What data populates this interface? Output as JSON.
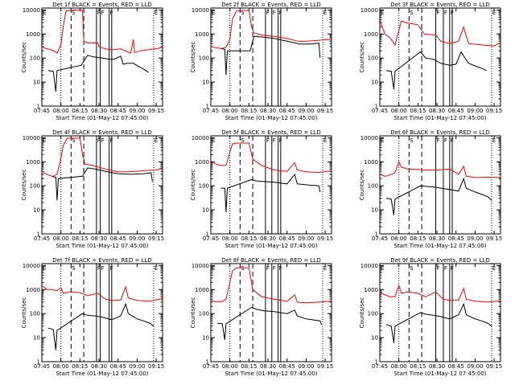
{
  "chart_data": {
    "type": "line",
    "panel_count": 9,
    "x_label": "Start Time (01-May-12 07:45:00)",
    "y_label": "Counts/sec",
    "x_ticks": [
      "07:45",
      "08:00",
      "08:15",
      "08:30",
      "08:45",
      "09:00",
      "09:15"
    ],
    "x_range_min": [
      0,
      95
    ],
    "y_ticks": [
      "1",
      "10",
      "100",
      "1000",
      "10000"
    ],
    "y_range": [
      1,
      12000
    ],
    "y_scale": "log",
    "colors": {
      "events": "#000000",
      "lld": "#ff0000"
    },
    "flag_glyph": "F",
    "marker_labels": {
      "S": "S",
      "E": "E"
    },
    "panels": [
      {
        "title": "Det 1f BLACK = Events, RED = LLD",
        "flag_count": 3,
        "red": [
          [
            0,
            300
          ],
          [
            2,
            260
          ],
          [
            6,
            230
          ],
          [
            10,
            190
          ],
          [
            12,
            160
          ],
          [
            15,
            350
          ],
          [
            17,
            2200
          ],
          [
            19,
            9000
          ],
          [
            24,
            9800
          ],
          [
            32,
            9800
          ],
          [
            33,
            500
          ],
          [
            36,
            420
          ],
          [
            44,
            420
          ],
          [
            45,
            300
          ],
          [
            48,
            260
          ],
          [
            52,
            230
          ],
          [
            57,
            220
          ],
          [
            62,
            240
          ],
          [
            70,
            160
          ],
          [
            72,
            600
          ],
          [
            73,
            170
          ],
          [
            78,
            200
          ],
          [
            86,
            230
          ],
          [
            95,
            270
          ]
        ],
        "black": [
          [
            5,
            30
          ],
          [
            9,
            28
          ],
          [
            11,
            4
          ],
          [
            12,
            30
          ],
          [
            31,
            50
          ],
          [
            36,
            130
          ],
          [
            41,
            110
          ],
          [
            48,
            100
          ],
          [
            53,
            90
          ],
          [
            57,
            90
          ],
          [
            62,
            120
          ],
          [
            64,
            55
          ],
          [
            67,
            60
          ],
          [
            72,
            60
          ],
          [
            76,
            45
          ],
          [
            80,
            35
          ],
          [
            84,
            25
          ]
        ]
      },
      {
        "title": "Det 2f BLACK = Events, RED = LLD",
        "flag_count": 3,
        "red": [
          [
            0,
            300
          ],
          [
            5,
            260
          ],
          [
            9,
            250
          ],
          [
            12,
            280
          ],
          [
            15,
            600
          ],
          [
            17,
            4000
          ],
          [
            20,
            9000
          ],
          [
            30,
            9500
          ],
          [
            32,
            2000
          ],
          [
            34,
            1100
          ],
          [
            40,
            900
          ],
          [
            50,
            800
          ],
          [
            60,
            650
          ],
          [
            70,
            480
          ],
          [
            80,
            520
          ],
          [
            95,
            600
          ]
        ],
        "black": [
          [
            8,
            250
          ],
          [
            11,
            230
          ],
          [
            12,
            20
          ],
          [
            13,
            200
          ],
          [
            31,
            200
          ],
          [
            34,
            800
          ],
          [
            40,
            750
          ],
          [
            50,
            650
          ],
          [
            60,
            500
          ],
          [
            70,
            380
          ],
          [
            80,
            380
          ],
          [
            85,
            420
          ],
          [
            86,
            100
          ]
        ]
      },
      {
        "title": "Det 3f BLACK = Events, RED = LLD",
        "flag_count": 3,
        "red": [
          [
            0,
            4000
          ],
          [
            4,
            1000
          ],
          [
            8,
            700
          ],
          [
            12,
            350
          ],
          [
            15,
            1400
          ],
          [
            17,
            3500
          ],
          [
            20,
            3000
          ],
          [
            30,
            2400
          ],
          [
            35,
            1000
          ],
          [
            44,
            900
          ],
          [
            48,
            500
          ],
          [
            55,
            400
          ],
          [
            62,
            500
          ],
          [
            66,
            2000
          ],
          [
            68,
            800
          ],
          [
            70,
            400
          ],
          [
            80,
            350
          ],
          [
            90,
            320
          ],
          [
            95,
            430
          ]
        ],
        "black": [
          [
            5,
            30
          ],
          [
            9,
            28
          ],
          [
            11,
            5
          ],
          [
            12,
            28
          ],
          [
            32,
            180
          ],
          [
            36,
            100
          ],
          [
            42,
            90
          ],
          [
            48,
            60
          ],
          [
            55,
            50
          ],
          [
            60,
            55
          ],
          [
            64,
            180
          ],
          [
            67,
            100
          ],
          [
            70,
            60
          ],
          [
            76,
            45
          ],
          [
            80,
            38
          ],
          [
            84,
            30
          ]
        ]
      },
      {
        "title": "Det 4f BLACK = Events, RED = LLD",
        "flag_count": 3,
        "red": [
          [
            0,
            400
          ],
          [
            5,
            280
          ],
          [
            9,
            250
          ],
          [
            12,
            300
          ],
          [
            15,
            1400
          ],
          [
            17,
            5000
          ],
          [
            20,
            9500
          ],
          [
            30,
            9500
          ],
          [
            32,
            2000
          ],
          [
            34,
            800
          ],
          [
            40,
            700
          ],
          [
            50,
            500
          ],
          [
            60,
            380
          ],
          [
            70,
            380
          ],
          [
            80,
            430
          ],
          [
            90,
            450
          ],
          [
            95,
            560
          ]
        ],
        "black": [
          [
            8,
            240
          ],
          [
            11,
            230
          ],
          [
            12,
            25
          ],
          [
            13,
            200
          ],
          [
            32,
            250
          ],
          [
            36,
            550
          ],
          [
            42,
            500
          ],
          [
            50,
            400
          ],
          [
            60,
            320
          ],
          [
            70,
            300
          ],
          [
            80,
            320
          ],
          [
            86,
            350
          ],
          [
            87,
            150
          ]
        ]
      },
      {
        "title": "Det 5f BLACK = Events, RED = LLD",
        "flag_count": 3,
        "red": [
          [
            0,
            1000
          ],
          [
            4,
            800
          ],
          [
            8,
            700
          ],
          [
            12,
            700
          ],
          [
            15,
            2500
          ],
          [
            17,
            5500
          ],
          [
            20,
            6000
          ],
          [
            30,
            6000
          ],
          [
            33,
            1300
          ],
          [
            40,
            700
          ],
          [
            50,
            450
          ],
          [
            60,
            400
          ],
          [
            66,
            900
          ],
          [
            68,
            450
          ],
          [
            75,
            380
          ],
          [
            85,
            360
          ],
          [
            95,
            420
          ]
        ],
        "black": [
          [
            8,
            80
          ],
          [
            11,
            80
          ],
          [
            12,
            8
          ],
          [
            13,
            80
          ],
          [
            32,
            180
          ],
          [
            36,
            160
          ],
          [
            42,
            150
          ],
          [
            50,
            140
          ],
          [
            60,
            120
          ],
          [
            66,
            300
          ],
          [
            68,
            120
          ],
          [
            75,
            110
          ],
          [
            80,
            105
          ],
          [
            85,
            100
          ],
          [
            86,
            55
          ]
        ]
      },
      {
        "title": "Det 6f BLACK = Events, RED = LLD",
        "flag_count": 3,
        "red": [
          [
            0,
            300
          ],
          [
            4,
            250
          ],
          [
            8,
            280
          ],
          [
            12,
            350
          ],
          [
            15,
            1000
          ],
          [
            17,
            600
          ],
          [
            22,
            500
          ],
          [
            30,
            480
          ],
          [
            35,
            450
          ],
          [
            45,
            450
          ],
          [
            55,
            500
          ],
          [
            62,
            300
          ],
          [
            66,
            650
          ],
          [
            68,
            250
          ],
          [
            75,
            220
          ],
          [
            85,
            230
          ],
          [
            95,
            220
          ]
        ],
        "black": [
          [
            5,
            30
          ],
          [
            9,
            28
          ],
          [
            11,
            6
          ],
          [
            12,
            28
          ],
          [
            32,
            100
          ],
          [
            36,
            95
          ],
          [
            42,
            90
          ],
          [
            48,
            80
          ],
          [
            55,
            70
          ],
          [
            62,
            60
          ],
          [
            66,
            200
          ],
          [
            68,
            80
          ],
          [
            75,
            55
          ],
          [
            80,
            45
          ],
          [
            85,
            35
          ],
          [
            88,
            25
          ]
        ]
      },
      {
        "title": "Det 7f BLACK = Events, RED = LLD",
        "flag_count": 3,
        "red": [
          [
            0,
            1500
          ],
          [
            4,
            1000
          ],
          [
            8,
            1000
          ],
          [
            12,
            900
          ],
          [
            15,
            1200
          ],
          [
            17,
            700
          ],
          [
            22,
            800
          ],
          [
            30,
            750
          ],
          [
            36,
            550
          ],
          [
            44,
            700
          ],
          [
            50,
            400
          ],
          [
            55,
            350
          ],
          [
            62,
            360
          ],
          [
            66,
            1300
          ],
          [
            68,
            450
          ],
          [
            75,
            350
          ],
          [
            85,
            330
          ],
          [
            95,
            420
          ]
        ],
        "black": [
          [
            5,
            25
          ],
          [
            9,
            22
          ],
          [
            11,
            3
          ],
          [
            12,
            20
          ],
          [
            32,
            100
          ],
          [
            36,
            85
          ],
          [
            42,
            80
          ],
          [
            48,
            70
          ],
          [
            55,
            55
          ],
          [
            62,
            80
          ],
          [
            66,
            250
          ],
          [
            68,
            100
          ],
          [
            75,
            60
          ],
          [
            80,
            50
          ],
          [
            85,
            40
          ],
          [
            88,
            30
          ]
        ]
      },
      {
        "title": "Det 8f BLACK = Events, RED = LLD",
        "flag_count": 3,
        "red": [
          [
            0,
            350
          ],
          [
            5,
            300
          ],
          [
            9,
            320
          ],
          [
            12,
            400
          ],
          [
            15,
            2000
          ],
          [
            17,
            6000
          ],
          [
            20,
            8000
          ],
          [
            30,
            8000
          ],
          [
            33,
            1000
          ],
          [
            40,
            500
          ],
          [
            50,
            400
          ],
          [
            60,
            320
          ],
          [
            66,
            600
          ],
          [
            68,
            300
          ],
          [
            75,
            280
          ],
          [
            85,
            300
          ],
          [
            95,
            330
          ]
        ],
        "black": [
          [
            5,
            40
          ],
          [
            9,
            38
          ],
          [
            11,
            8
          ],
          [
            12,
            38
          ],
          [
            32,
            180
          ],
          [
            36,
            150
          ],
          [
            42,
            130
          ],
          [
            50,
            120
          ],
          [
            60,
            100
          ],
          [
            66,
            140
          ],
          [
            68,
            80
          ],
          [
            75,
            60
          ],
          [
            80,
            55
          ],
          [
            86,
            50
          ],
          [
            87,
            35
          ]
        ]
      },
      {
        "title": "Det 9f BLACK = Events, RED = LLD",
        "flag_count": 3,
        "red": [
          [
            0,
            800
          ],
          [
            4,
            600
          ],
          [
            8,
            500
          ],
          [
            12,
            500
          ],
          [
            15,
            1500
          ],
          [
            17,
            700
          ],
          [
            22,
            800
          ],
          [
            30,
            700
          ],
          [
            36,
            500
          ],
          [
            44,
            800
          ],
          [
            50,
            400
          ],
          [
            55,
            350
          ],
          [
            62,
            360
          ],
          [
            66,
            1100
          ],
          [
            68,
            400
          ],
          [
            75,
            330
          ],
          [
            85,
            300
          ],
          [
            95,
            340
          ]
        ],
        "black": [
          [
            5,
            35
          ],
          [
            9,
            30
          ],
          [
            11,
            6
          ],
          [
            12,
            30
          ],
          [
            32,
            110
          ],
          [
            36,
            95
          ],
          [
            42,
            85
          ],
          [
            48,
            75
          ],
          [
            55,
            60
          ],
          [
            62,
            90
          ],
          [
            66,
            250
          ],
          [
            68,
            90
          ],
          [
            75,
            60
          ],
          [
            80,
            50
          ],
          [
            85,
            40
          ],
          [
            88,
            30
          ]
        ]
      }
    ]
  }
}
